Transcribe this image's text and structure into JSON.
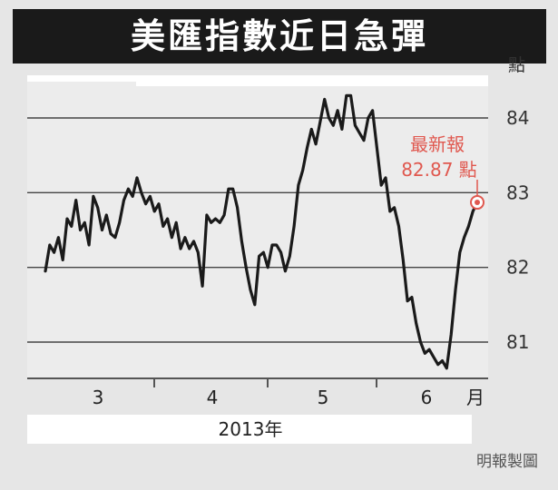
{
  "chart_data": {
    "type": "line",
    "title": "美匯指數近日急彈",
    "unit_label": "點",
    "y_ticks": [
      "84",
      "83",
      "82",
      "81"
    ],
    "ylim": [
      80.55,
      84.3
    ],
    "x_ticks": [
      "3",
      "4",
      "5",
      "6"
    ],
    "x_unit": "月",
    "year_label": "2013年",
    "annotation": {
      "line1": "最新報",
      "line2": "82.87 點",
      "value": 82.87
    },
    "grid": true,
    "series": [
      {
        "values": [
          81.95,
          82.3,
          82.2,
          82.4,
          82.1,
          82.65,
          82.55,
          82.9,
          82.5,
          82.6,
          82.3,
          82.95,
          82.8,
          82.5,
          82.7,
          82.45,
          82.4,
          82.6,
          82.9,
          83.05,
          82.95,
          83.2,
          83.0,
          82.85,
          82.95,
          82.75,
          82.85,
          82.55,
          82.65,
          82.4,
          82.6,
          82.25,
          82.4,
          82.25,
          82.35,
          82.2,
          81.75,
          82.7,
          82.6,
          82.65,
          82.6,
          82.7,
          83.05,
          83.05,
          82.8,
          82.35,
          82.0,
          81.7,
          81.5,
          82.15,
          82.2,
          82.0,
          82.3,
          82.3,
          82.2,
          81.95,
          82.15,
          82.55,
          83.1,
          83.3,
          83.6,
          83.85,
          83.65,
          83.95,
          84.25,
          84.0,
          83.9,
          84.1,
          83.85,
          84.3,
          84.3,
          83.9,
          83.8,
          83.7,
          84.0,
          84.1,
          83.6,
          83.1,
          83.2,
          82.75,
          82.8,
          82.55,
          82.1,
          81.55,
          81.6,
          81.25,
          81.0,
          80.85,
          80.9,
          80.8,
          80.7,
          80.75,
          80.65,
          81.1,
          81.7,
          82.2,
          82.4,
          82.55,
          82.75,
          82.87
        ]
      }
    ]
  },
  "credit": "明報製圖"
}
